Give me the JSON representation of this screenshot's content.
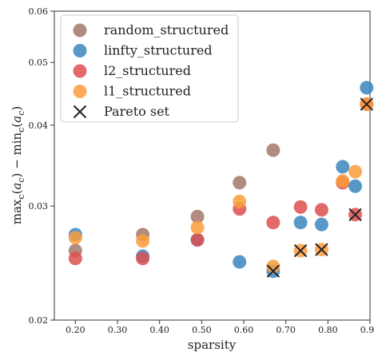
{
  "chart_data": {
    "type": "scatter",
    "xlabel": "sparsity",
    "ylabel": "max_c(a_c) − min_c(a_c)",
    "ylabel_parts": {
      "max": "max",
      "c1": "c",
      "a1": "a",
      "sub1": "c",
      "minus": " − ",
      "min": "min",
      "c2": "c",
      "a2": "a",
      "sub2": "c"
    },
    "xscale": "linear",
    "yscale": "log",
    "xlim": [
      0.15,
      0.9
    ],
    "ylim": [
      0.02,
      0.06
    ],
    "x_ticks": [
      0.2,
      0.3,
      0.4,
      0.5,
      0.6,
      0.7,
      0.8,
      0.9
    ],
    "x_tick_labels": [
      "0.20",
      "0.30",
      "0.40",
      "0.50",
      "0.60",
      "0.70",
      "0.80",
      "0.90"
    ],
    "y_ticks": [
      0.02,
      0.03,
      0.04,
      0.05,
      0.06
    ],
    "y_tick_labels": [
      "0.02",
      "0.03",
      "0.04",
      "0.05",
      "0.06"
    ],
    "grid": false,
    "legend_position": "top-left",
    "series": [
      {
        "name": "random_structured",
        "color": "#a5776a",
        "marker": "circle",
        "x": [
          0.2,
          0.36,
          0.49,
          0.59,
          0.67
        ],
        "y": [
          0.0256,
          0.0271,
          0.0289,
          0.0326,
          0.0366
        ]
      },
      {
        "name": "linfty_structured",
        "color": "#3b86c0",
        "marker": "circle",
        "x": [
          0.2,
          0.36,
          0.49,
          0.59,
          0.67,
          0.735,
          0.785,
          0.835,
          0.865,
          0.892
        ],
        "y": [
          0.0271,
          0.0251,
          0.0266,
          0.0246,
          0.0238,
          0.0283,
          0.0281,
          0.0345,
          0.0322,
          0.0457
        ]
      },
      {
        "name": "l2_structured",
        "color": "#de4f4f",
        "marker": "circle",
        "x": [
          0.2,
          0.36,
          0.49,
          0.59,
          0.67,
          0.735,
          0.785,
          0.835,
          0.865,
          0.892
        ],
        "y": [
          0.0249,
          0.0249,
          0.0266,
          0.0297,
          0.0283,
          0.0299,
          0.0296,
          0.0326,
          0.0291,
          0.0431
        ]
      },
      {
        "name": "l1_structured",
        "color": "#fb9d3c",
        "marker": "circle",
        "x": [
          0.2,
          0.36,
          0.49,
          0.59,
          0.67,
          0.735,
          0.785,
          0.835,
          0.865,
          0.892
        ],
        "y": [
          0.0268,
          0.0265,
          0.0278,
          0.0305,
          0.0242,
          0.0256,
          0.0257,
          0.0328,
          0.0339,
          0.0431
        ]
      },
      {
        "name": "Pareto set",
        "color": "#222222",
        "marker": "x",
        "x": [
          0.67,
          0.735,
          0.785,
          0.865,
          0.892
        ],
        "y": [
          0.0238,
          0.0256,
          0.0257,
          0.0291,
          0.0431
        ]
      }
    ]
  }
}
